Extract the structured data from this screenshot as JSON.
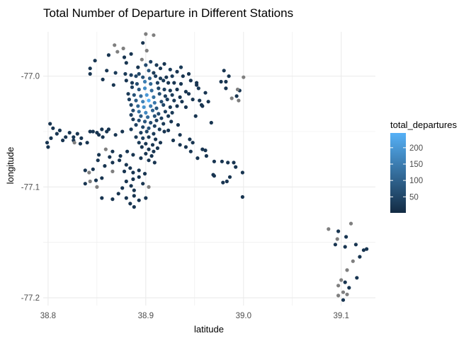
{
  "chart_data": {
    "type": "scatter",
    "title": "Total Number of Departure in Different Stations",
    "xlabel": "latitude",
    "ylabel": "longitude",
    "xlim": [
      38.795,
      39.135
    ],
    "ylim": [
      -77.207,
      -76.96
    ],
    "x_ticks": [
      38.8,
      38.9,
      39.0,
      39.1
    ],
    "x_tick_labels": [
      "38.8",
      "38.9",
      "39.0",
      "39.1"
    ],
    "y_ticks": [
      -77.0,
      -77.1,
      -77.2
    ],
    "y_tick_labels": [
      "-77.0",
      "-77.1",
      "-77.2"
    ],
    "grid": true,
    "legend": {
      "title": "total_departures",
      "placement": "right",
      "ticks": [
        50,
        100,
        150,
        200
      ],
      "tick_labels": [
        "50",
        "100",
        "150",
        "200"
      ],
      "range": [
        1,
        245
      ],
      "color_low": "#132B43",
      "color_high": "#56B1F7",
      "na_color": "#7F7F7F"
    },
    "colors": {
      "gridline": "#EBEBEB",
      "text": "#4D4D4D"
    },
    "points": [
      [
        38.9,
        -76.962,
        null
      ],
      [
        38.908,
        -76.963,
        null
      ],
      [
        38.897,
        -76.97,
        20
      ],
      [
        38.901,
        -76.977,
        null
      ],
      [
        38.868,
        -76.972,
        null
      ],
      [
        38.877,
        -76.975,
        null
      ],
      [
        38.871,
        -76.978,
        null
      ],
      [
        38.862,
        -76.981,
        20
      ],
      [
        38.878,
        -76.983,
        20
      ],
      [
        38.88,
        -76.988,
        20
      ],
      [
        38.885,
        -76.98,
        20
      ],
      [
        38.896,
        -76.985,
        null
      ],
      [
        38.905,
        -76.987,
        40
      ],
      [
        38.911,
        -76.99,
        30
      ],
      [
        38.892,
        -76.992,
        20
      ],
      [
        38.9,
        -76.99,
        60
      ],
      [
        38.893,
        -76.998,
        50
      ],
      [
        38.903,
        -76.995,
        80
      ],
      [
        38.908,
        -76.997,
        30
      ],
      [
        38.915,
        -76.993,
        20
      ],
      [
        38.919,
        -76.989,
        20
      ],
      [
        38.925,
        -76.994,
        30
      ],
      [
        38.932,
        -76.996,
        20
      ],
      [
        38.936,
        -76.992,
        30
      ],
      [
        38.86,
        -76.995,
        20
      ],
      [
        38.869,
        -76.997,
        30
      ],
      [
        38.843,
        -76.993,
        20
      ],
      [
        38.843,
        -76.998,
        20
      ],
      [
        38.879,
        -76.998,
        30
      ],
      [
        38.885,
        -76.999,
        40
      ],
      [
        38.89,
        -77.0,
        50
      ],
      [
        38.897,
        -77.001,
        70
      ],
      [
        38.904,
        -77.002,
        90
      ],
      [
        38.91,
        -77.0,
        40
      ],
      [
        38.915,
        -77.002,
        30
      ],
      [
        38.921,
        -77.001,
        20
      ],
      [
        38.927,
        -77.0,
        30
      ],
      [
        38.88,
        -77.004,
        20
      ],
      [
        38.886,
        -77.006,
        30
      ],
      [
        38.891,
        -77.007,
        60
      ],
      [
        38.899,
        -77.005,
        150
      ],
      [
        38.905,
        -77.007,
        110
      ],
      [
        38.912,
        -77.006,
        40
      ],
      [
        38.918,
        -77.004,
        30
      ],
      [
        38.923,
        -77.006,
        20
      ],
      [
        38.929,
        -77.006,
        20
      ],
      [
        38.936,
        -77.007,
        20
      ],
      [
        38.946,
        -77.004,
        20
      ],
      [
        38.952,
        -77.008,
        20
      ],
      [
        38.867,
        -77.008,
        20
      ],
      [
        38.856,
        -77.003,
        20
      ],
      [
        38.886,
        -77.01,
        40
      ],
      [
        38.893,
        -77.012,
        80
      ],
      [
        38.899,
        -77.011,
        180
      ],
      [
        38.906,
        -77.013,
        120
      ],
      [
        38.913,
        -77.011,
        50
      ],
      [
        38.919,
        -77.012,
        40
      ],
      [
        38.925,
        -77.013,
        30
      ],
      [
        38.932,
        -77.012,
        20
      ],
      [
        38.941,
        -77.014,
        20
      ],
      [
        38.954,
        -77.011,
        30
      ],
      [
        38.961,
        -77.015,
        20
      ],
      [
        38.882,
        -77.016,
        30
      ],
      [
        38.888,
        -77.017,
        70
      ],
      [
        38.895,
        -77.018,
        120
      ],
      [
        38.901,
        -77.017,
        200
      ],
      [
        38.908,
        -77.019,
        130
      ],
      [
        38.914,
        -77.016,
        70
      ],
      [
        38.92,
        -77.018,
        40
      ],
      [
        38.927,
        -77.017,
        30
      ],
      [
        38.935,
        -77.019,
        20
      ],
      [
        38.944,
        -77.016,
        20
      ],
      [
        38.883,
        -77.021,
        40
      ],
      [
        38.89,
        -77.022,
        90
      ],
      [
        38.897,
        -77.023,
        160
      ],
      [
        38.903,
        -77.022,
        245
      ],
      [
        38.909,
        -77.024,
        140
      ],
      [
        38.916,
        -77.023,
        60
      ],
      [
        38.922,
        -77.021,
        40
      ],
      [
        38.929,
        -77.022,
        30
      ],
      [
        38.937,
        -77.023,
        20
      ],
      [
        38.948,
        -77.021,
        20
      ],
      [
        38.955,
        -77.022,
        20
      ],
      [
        38.964,
        -77.023,
        20
      ],
      [
        38.885,
        -77.026,
        50
      ],
      [
        38.892,
        -77.027,
        110
      ],
      [
        38.898,
        -77.028,
        190
      ],
      [
        38.905,
        -77.027,
        150
      ],
      [
        38.911,
        -77.029,
        80
      ],
      [
        38.918,
        -77.026,
        50
      ],
      [
        38.925,
        -77.028,
        30
      ],
      [
        38.932,
        -77.027,
        20
      ],
      [
        38.941,
        -77.028,
        20
      ],
      [
        38.958,
        -77.027,
        20
      ],
      [
        38.887,
        -77.031,
        60
      ],
      [
        38.893,
        -77.032,
        130
      ],
      [
        38.9,
        -77.033,
        170
      ],
      [
        38.907,
        -77.031,
        100
      ],
      [
        38.913,
        -77.034,
        60
      ],
      [
        38.92,
        -77.032,
        40
      ],
      [
        38.927,
        -77.033,
        30
      ],
      [
        38.885,
        -77.035,
        40
      ],
      [
        38.895,
        -77.036,
        90
      ],
      [
        38.902,
        -77.037,
        120
      ],
      [
        38.909,
        -77.036,
        70
      ],
      [
        38.916,
        -77.038,
        40
      ],
      [
        38.923,
        -77.036,
        30
      ],
      [
        38.887,
        -77.039,
        30
      ],
      [
        38.893,
        -77.04,
        60
      ],
      [
        38.899,
        -77.041,
        80
      ],
      [
        38.905,
        -77.042,
        60
      ],
      [
        38.911,
        -77.04,
        40
      ],
      [
        38.918,
        -77.043,
        30
      ],
      [
        38.926,
        -77.041,
        20
      ],
      [
        38.933,
        -77.044,
        20
      ],
      [
        38.89,
        -77.044,
        40
      ],
      [
        38.897,
        -77.046,
        50
      ],
      [
        38.903,
        -77.047,
        70
      ],
      [
        38.909,
        -77.045,
        40
      ],
      [
        38.914,
        -77.048,
        30
      ],
      [
        38.885,
        -77.048,
        30
      ],
      [
        38.895,
        -77.051,
        40
      ],
      [
        38.901,
        -77.05,
        50
      ],
      [
        38.908,
        -77.052,
        30
      ],
      [
        38.919,
        -77.05,
        20
      ],
      [
        38.89,
        -77.055,
        30
      ],
      [
        38.897,
        -77.056,
        40
      ],
      [
        38.903,
        -77.055,
        30
      ],
      [
        38.91,
        -77.057,
        20
      ],
      [
        38.893,
        -77.06,
        30
      ],
      [
        38.9,
        -77.061,
        20
      ],
      [
        38.907,
        -77.062,
        20
      ],
      [
        38.915,
        -77.06,
        20
      ],
      [
        38.928,
        -77.058,
        20
      ],
      [
        38.935,
        -77.062,
        20
      ],
      [
        38.941,
        -77.064,
        20
      ],
      [
        38.946,
        -77.068,
        20
      ],
      [
        38.953,
        -77.074,
        20
      ],
      [
        38.962,
        -77.072,
        20
      ],
      [
        38.896,
        -77.064,
        20
      ],
      [
        38.903,
        -77.066,
        20
      ],
      [
        38.908,
        -77.068,
        20
      ],
      [
        38.912,
        -77.065,
        20
      ],
      [
        38.9,
        -77.07,
        20
      ],
      [
        38.906,
        -77.072,
        20
      ],
      [
        38.895,
        -77.074,
        20
      ],
      [
        38.903,
        -77.076,
        20
      ],
      [
        38.909,
        -77.078,
        20
      ],
      [
        38.887,
        -77.071,
        20
      ],
      [
        38.881,
        -77.068,
        20
      ],
      [
        38.874,
        -77.072,
        20
      ],
      [
        38.866,
        -77.068,
        20
      ],
      [
        38.863,
        -77.073,
        20
      ],
      [
        38.866,
        -77.078,
        20
      ],
      [
        38.873,
        -77.076,
        20
      ],
      [
        38.88,
        -77.08,
        20
      ],
      [
        38.884,
        -77.083,
        20
      ],
      [
        38.878,
        -77.086,
        20
      ],
      [
        38.887,
        -77.087,
        20
      ],
      [
        38.893,
        -77.085,
        20
      ],
      [
        38.899,
        -77.088,
        20
      ],
      [
        38.893,
        -77.091,
        20
      ],
      [
        38.887,
        -77.093,
        20
      ],
      [
        38.88,
        -77.095,
        20
      ],
      [
        38.885,
        -77.099,
        20
      ],
      [
        38.876,
        -77.101,
        20
      ],
      [
        38.888,
        -77.103,
        20
      ],
      [
        38.897,
        -77.097,
        20
      ],
      [
        38.903,
        -77.1,
        null
      ],
      [
        38.888,
        -77.108,
        20
      ],
      [
        38.88,
        -77.11,
        20
      ],
      [
        38.893,
        -77.112,
        20
      ],
      [
        38.9,
        -77.11,
        20
      ],
      [
        38.884,
        -77.115,
        20
      ],
      [
        38.888,
        -77.118,
        20
      ],
      [
        38.872,
        -77.106,
        20
      ],
      [
        38.866,
        -77.111,
        20
      ],
      [
        38.855,
        -77.11,
        20
      ],
      [
        38.85,
        -77.1,
        null
      ],
      [
        38.843,
        -77.095,
        null
      ],
      [
        38.838,
        -77.097,
        20
      ],
      [
        38.842,
        -77.087,
        null
      ],
      [
        38.846,
        -77.084,
        20
      ],
      [
        38.838,
        -77.085,
        20
      ],
      [
        38.851,
        -77.076,
        20
      ],
      [
        38.858,
        -77.081,
        20
      ],
      [
        38.866,
        -77.086,
        null
      ],
      [
        38.859,
        -77.066,
        null
      ],
      [
        38.852,
        -77.071,
        20
      ],
      [
        38.85,
        -77.051,
        20
      ],
      [
        38.855,
        -77.048,
        20
      ],
      [
        38.86,
        -77.05,
        20
      ],
      [
        38.852,
        -77.053,
        20
      ],
      [
        38.846,
        -77.05,
        20
      ],
      [
        38.843,
        -77.05,
        20
      ],
      [
        38.856,
        -77.055,
        20
      ],
      [
        38.84,
        -77.06,
        20
      ],
      [
        38.834,
        -77.056,
        20
      ],
      [
        38.83,
        -77.052,
        20
      ],
      [
        38.826,
        -77.055,
        20
      ],
      [
        38.822,
        -77.051,
        20
      ],
      [
        38.818,
        -77.055,
        20
      ],
      [
        38.815,
        -77.058,
        20
      ],
      [
        38.809,
        -77.052,
        20
      ],
      [
        38.803,
        -77.056,
        20
      ],
      [
        38.799,
        -77.06,
        20
      ],
      [
        38.805,
        -77.047,
        20
      ],
      [
        38.812,
        -77.049,
        20
      ],
      [
        38.802,
        -77.043,
        20
      ],
      [
        38.8,
        -77.064,
        20
      ],
      [
        38.826,
        -77.058,
        20
      ],
      [
        38.833,
        -77.061,
        20
      ],
      [
        38.876,
        -77.05,
        20
      ],
      [
        38.869,
        -77.053,
        20
      ],
      [
        38.862,
        -77.048,
        20
      ],
      [
        38.923,
        -77.049,
        20
      ],
      [
        38.935,
        -77.053,
        20
      ],
      [
        38.945,
        -77.057,
        20
      ],
      [
        38.961,
        -77.067,
        20
      ],
      [
        38.97,
        -77.077,
        20
      ],
      [
        38.978,
        -77.077,
        20
      ],
      [
        38.984,
        -77.078,
        20
      ],
      [
        38.99,
        -77.078,
        20
      ],
      [
        38.992,
        -77.082,
        20
      ],
      [
        38.999,
        -77.087,
        20
      ],
      [
        38.969,
        -77.089,
        20
      ],
      [
        38.999,
        -77.109,
        20
      ],
      [
        38.97,
        -77.09,
        20
      ],
      [
        38.979,
        -77.096,
        20
      ],
      [
        38.986,
        -77.091,
        20
      ],
      [
        38.983,
        -77.095,
        20
      ],
      [
        38.958,
        -77.066,
        20
      ],
      [
        38.948,
        -77.06,
        20
      ],
      [
        38.982,
        -77.005,
        20
      ],
      [
        38.985,
        -77.0,
        20
      ],
      [
        38.982,
        -77.011,
        20
      ],
      [
        38.977,
        -77.005,
        20
      ],
      [
        38.98,
        -76.995,
        20
      ],
      [
        38.996,
        -77.013,
        20
      ],
      [
        38.993,
        -77.018,
        20
      ],
      [
        38.995,
        -77.022,
        null
      ],
      [
        38.988,
        -77.02,
        null
      ],
      [
        38.994,
        -77.012,
        null
      ],
      [
        39.0,
        -77.001,
        null
      ],
      [
        38.951,
        -77.036,
        20
      ],
      [
        38.957,
        -77.026,
        20
      ],
      [
        38.967,
        -77.042,
        20
      ],
      [
        38.952,
        -77.006,
        20
      ],
      [
        38.938,
        -77.0,
        20
      ],
      [
        38.944,
        -76.998,
        20
      ],
      [
        38.848,
        -76.986,
        20
      ],
      [
        38.827,
        -77.06,
        null
      ],
      [
        38.849,
        -77.094,
        20
      ],
      [
        38.855,
        -77.092,
        20
      ],
      [
        39.087,
        -77.138,
        null
      ],
      [
        39.097,
        -77.14,
        20
      ],
      [
        39.11,
        -77.133,
        null
      ],
      [
        39.105,
        -77.145,
        20
      ],
      [
        39.096,
        -77.147,
        null
      ],
      [
        39.094,
        -77.152,
        20
      ],
      [
        39.104,
        -77.154,
        20
      ],
      [
        39.115,
        -77.152,
        20
      ],
      [
        39.123,
        -77.157,
        20
      ],
      [
        39.126,
        -77.156,
        20
      ],
      [
        39.119,
        -77.163,
        20
      ],
      [
        39.112,
        -77.167,
        null
      ],
      [
        39.106,
        -77.175,
        null
      ],
      [
        39.116,
        -77.182,
        20
      ],
      [
        39.1,
        -77.184,
        null
      ],
      [
        39.104,
        -77.186,
        20
      ],
      [
        39.097,
        -77.189,
        null
      ],
      [
        39.108,
        -77.191,
        20
      ],
      [
        39.102,
        -77.195,
        null
      ],
      [
        39.097,
        -77.198,
        null
      ],
      [
        39.106,
        -77.197,
        null
      ],
      [
        39.102,
        -77.202,
        20
      ]
    ]
  }
}
